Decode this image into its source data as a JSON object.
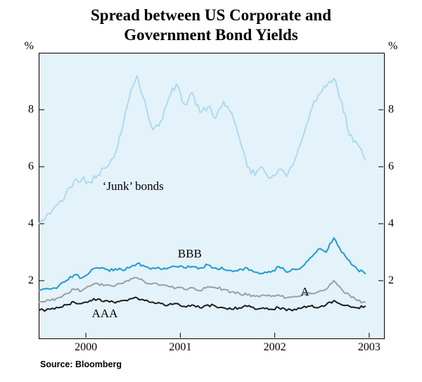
{
  "page": {
    "title_line1": "Spread between US Corporate and",
    "title_line2": "Government Bond Yields",
    "unit_left": "%",
    "unit_right": "%",
    "source": "Source: Bloomberg"
  },
  "chart_data": {
    "type": "line",
    "title": "Spread between US Corporate and Government Bond Yields",
    "xlabel": "",
    "ylabel": "%",
    "ylim": [
      0,
      10
    ],
    "xlim": [
      1999.5,
      2003.15
    ],
    "yticks": [
      8,
      6,
      4,
      2
    ],
    "xticks": [
      2000,
      2001,
      2002,
      2003
    ],
    "grid": false,
    "legend_position": "inline-annotations",
    "background": "#e4f2f9",
    "x": [
      1999.5,
      1999.625,
      1999.708,
      1999.792,
      1999.875,
      1999.958,
      2000.042,
      2000.125,
      2000.208,
      2000.292,
      2000.375,
      2000.458,
      2000.542,
      2000.625,
      2000.708,
      2000.792,
      2000.875,
      2000.958,
      2001.042,
      2001.125,
      2001.208,
      2001.292,
      2001.375,
      2001.458,
      2001.542,
      2001.625,
      2001.708,
      2001.792,
      2001.875,
      2001.958,
      2002.042,
      2002.125,
      2002.208,
      2002.292,
      2002.375,
      2002.458,
      2002.542,
      2002.625,
      2002.708,
      2002.792,
      2002.875,
      2002.958
    ],
    "series": [
      {
        "name": "'Junk' bonds",
        "color": "#a6d9f0",
        "width": 1.8,
        "jitter": 0.13,
        "values": [
          4.0,
          4.35,
          4.7,
          5.1,
          5.5,
          5.55,
          5.45,
          5.7,
          5.95,
          6.3,
          7.2,
          8.4,
          9.2,
          8.3,
          7.3,
          7.6,
          8.4,
          8.9,
          8.2,
          8.6,
          7.9,
          8.1,
          7.7,
          8.3,
          7.9,
          7.0,
          6.0,
          5.7,
          5.95,
          5.6,
          5.9,
          5.65,
          6.2,
          7.0,
          7.9,
          8.5,
          8.8,
          9.1,
          8.3,
          7.1,
          6.8,
          6.25
        ]
      },
      {
        "name": "BBB",
        "color": "#1b9bd1",
        "width": 2,
        "jitter": 0.06,
        "values": [
          1.65,
          1.7,
          1.8,
          2.0,
          2.2,
          2.1,
          2.3,
          2.45,
          2.4,
          2.35,
          2.4,
          2.45,
          2.6,
          2.5,
          2.45,
          2.4,
          2.45,
          2.5,
          2.45,
          2.5,
          2.45,
          2.55,
          2.45,
          2.4,
          2.35,
          2.4,
          2.45,
          2.3,
          2.25,
          2.3,
          2.5,
          2.3,
          2.4,
          2.5,
          2.8,
          3.1,
          3.0,
          3.5,
          3.0,
          2.7,
          2.4,
          2.25
        ]
      },
      {
        "name": "A",
        "color": "#9b9fa3",
        "width": 2,
        "jitter": 0.05,
        "values": [
          1.25,
          1.3,
          1.4,
          1.55,
          1.7,
          1.65,
          1.8,
          1.9,
          1.85,
          1.8,
          1.9,
          2.0,
          2.1,
          1.95,
          1.9,
          1.85,
          1.8,
          1.75,
          1.7,
          1.75,
          1.65,
          1.8,
          1.75,
          1.7,
          1.6,
          1.55,
          1.5,
          1.45,
          1.5,
          1.45,
          1.5,
          1.4,
          1.45,
          1.5,
          1.55,
          1.6,
          1.7,
          2.0,
          1.7,
          1.5,
          1.3,
          1.25
        ]
      },
      {
        "name": "AAA",
        "color": "#1c1c1c",
        "width": 2,
        "jitter": 0.05,
        "values": [
          0.95,
          1.0,
          1.05,
          1.15,
          1.25,
          1.2,
          1.3,
          1.35,
          1.3,
          1.25,
          1.3,
          1.35,
          1.4,
          1.3,
          1.25,
          1.2,
          1.15,
          1.2,
          1.1,
          1.15,
          1.05,
          1.15,
          1.1,
          1.05,
          1.0,
          1.05,
          1.1,
          1.0,
          1.05,
          1.0,
          1.05,
          0.95,
          1.0,
          1.05,
          1.1,
          1.05,
          1.15,
          1.3,
          1.15,
          1.1,
          1.05,
          1.1
        ]
      }
    ],
    "annotations": [
      {
        "text": "‘Junk’ bonds",
        "x": 2000.5,
        "y": 5.3
      },
      {
        "text": "BBB",
        "x": 2001.1,
        "y": 2.95
      },
      {
        "text": "A",
        "x": 2002.32,
        "y": 1.6
      },
      {
        "text": "AAA",
        "x": 2000.2,
        "y": 0.85
      }
    ]
  }
}
